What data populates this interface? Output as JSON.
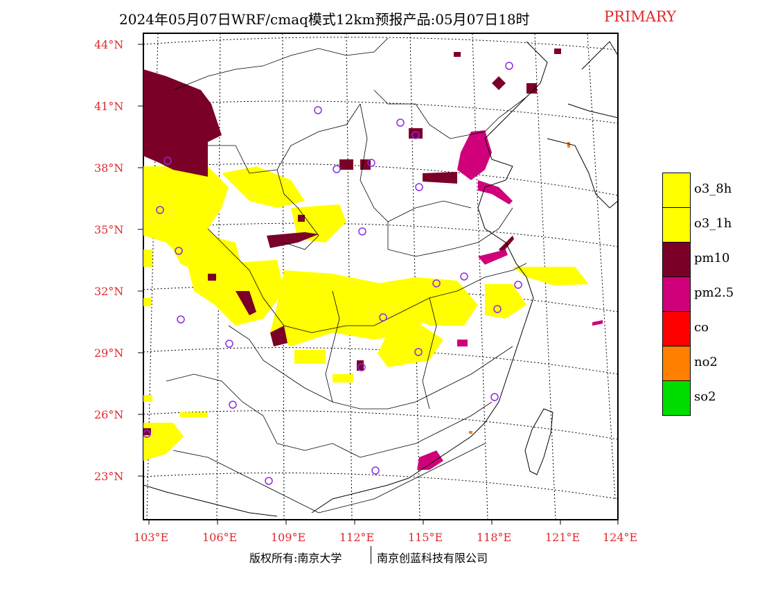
{
  "title": {
    "main": "2024年05月07日WRF/cmaq模式12km预报产品:05月07日18时",
    "tag": "PRIMARY"
  },
  "latitude_labels": [
    "44°N",
    "41°N",
    "38°N",
    "35°N",
    "32°N",
    "29°N",
    "26°N",
    "23°N"
  ],
  "longitude_labels": [
    "103°E",
    "106°E",
    "109°E",
    "112°E",
    "115°E",
    "118°E",
    "121°E",
    "124°E"
  ],
  "legend": [
    {
      "label": "o3_8h",
      "color": "#ffff00"
    },
    {
      "label": "o3_1h",
      "color": "#ffff00"
    },
    {
      "label": "pm10",
      "color": "#7b0028"
    },
    {
      "label": "pm2.5",
      "color": "#d0007a"
    },
    {
      "label": "co",
      "color": "#ff0000"
    },
    {
      "label": "no2",
      "color": "#ff7f00"
    },
    {
      "label": "so2",
      "color": "#00dd00"
    }
  ],
  "footer": {
    "left": "版权所有:南京大学",
    "right": "南京创蓝科技有限公司"
  },
  "colors": {
    "label_red": "#e0282c",
    "station_marker": "#8a2be2"
  },
  "icons": {
    "station": "circle-icon"
  }
}
